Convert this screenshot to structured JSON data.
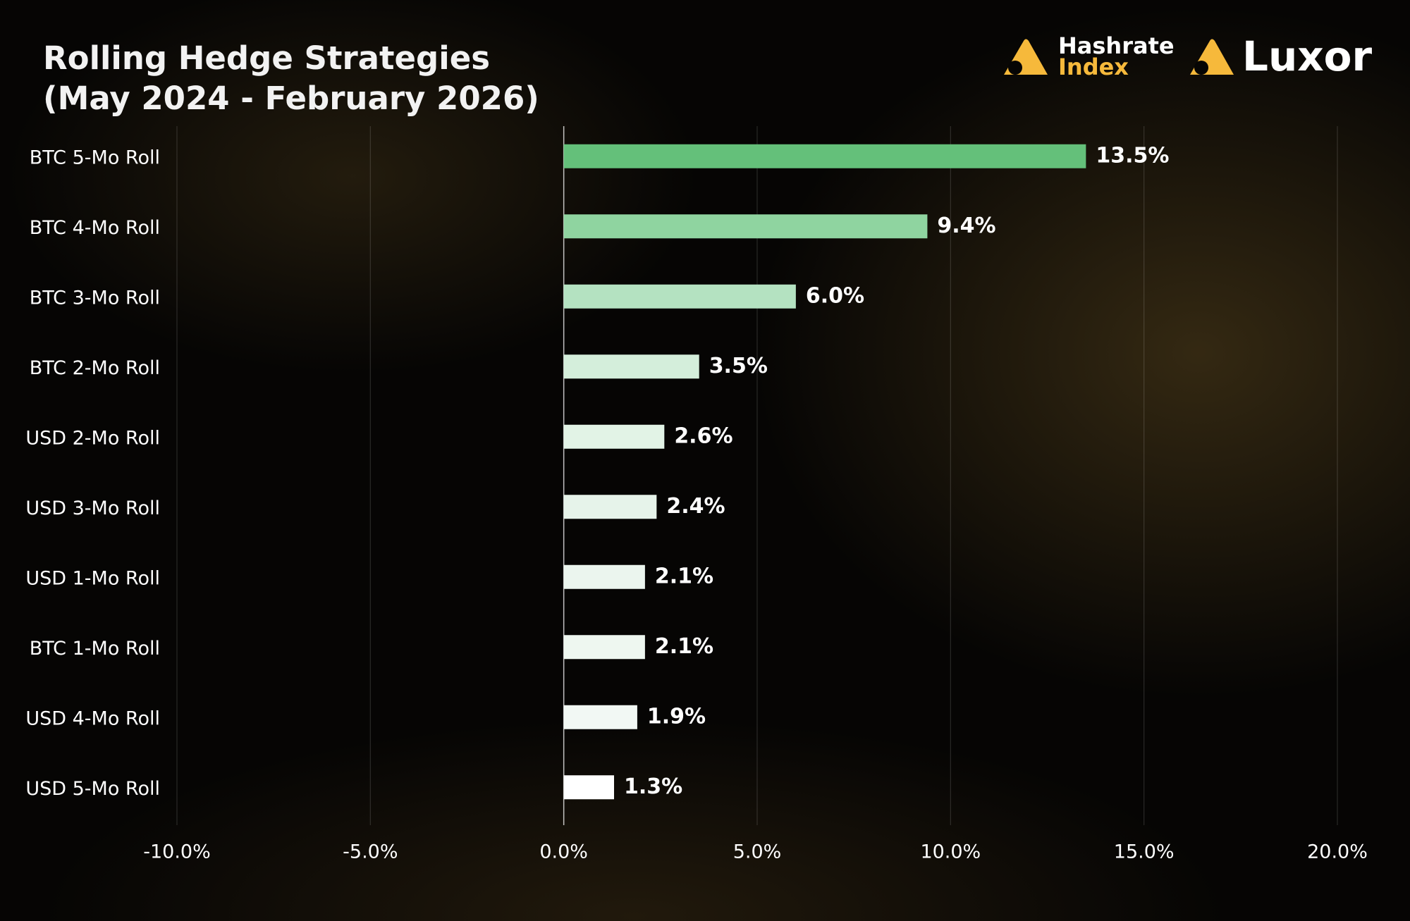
{
  "brand": {
    "hashrate": "Hashrate",
    "index": "Index",
    "luxor": "Luxor"
  },
  "chart_data": {
    "type": "bar",
    "orientation": "horizontal",
    "title": "Rolling Hedge Strategies",
    "subtitle": "(May 2024 - February 2026)",
    "categories": [
      "BTC 5-Mo Roll",
      "BTC 4-Mo Roll",
      "BTC 3-Mo Roll",
      "BTC 2-Mo Roll",
      "USD 2-Mo Roll",
      "USD 3-Mo Roll",
      "USD 1-Mo Roll",
      "BTC 1-Mo Roll",
      "USD 4-Mo Roll",
      "USD 5-Mo Roll"
    ],
    "values": [
      13.5,
      9.4,
      6.0,
      3.5,
      2.6,
      2.4,
      2.1,
      2.1,
      1.9,
      1.3
    ],
    "value_labels": [
      "13.5%",
      "9.4%",
      "6.0%",
      "3.5%",
      "2.6%",
      "2.4%",
      "2.1%",
      "2.1%",
      "1.9%",
      "1.3%"
    ],
    "colors": [
      "#64c07a",
      "#8fd4a0",
      "#b4e2c1",
      "#d4eedb",
      "#e2f3e6",
      "#e6f3ea",
      "#ebf5ee",
      "#eef7f0",
      "#f2f8f4",
      "#ffffff"
    ],
    "xlim": [
      -10,
      20
    ],
    "xticks": [
      {
        "value": -10,
        "label": "-10.0%"
      },
      {
        "value": -5,
        "label": "-5.0%"
      },
      {
        "value": 0,
        "label": "0.0%"
      },
      {
        "value": 5,
        "label": "5.0%"
      },
      {
        "value": 10,
        "label": "10.0%"
      },
      {
        "value": 15,
        "label": "15.0%"
      },
      {
        "value": 20,
        "label": "20.0%"
      }
    ],
    "grid": true
  }
}
